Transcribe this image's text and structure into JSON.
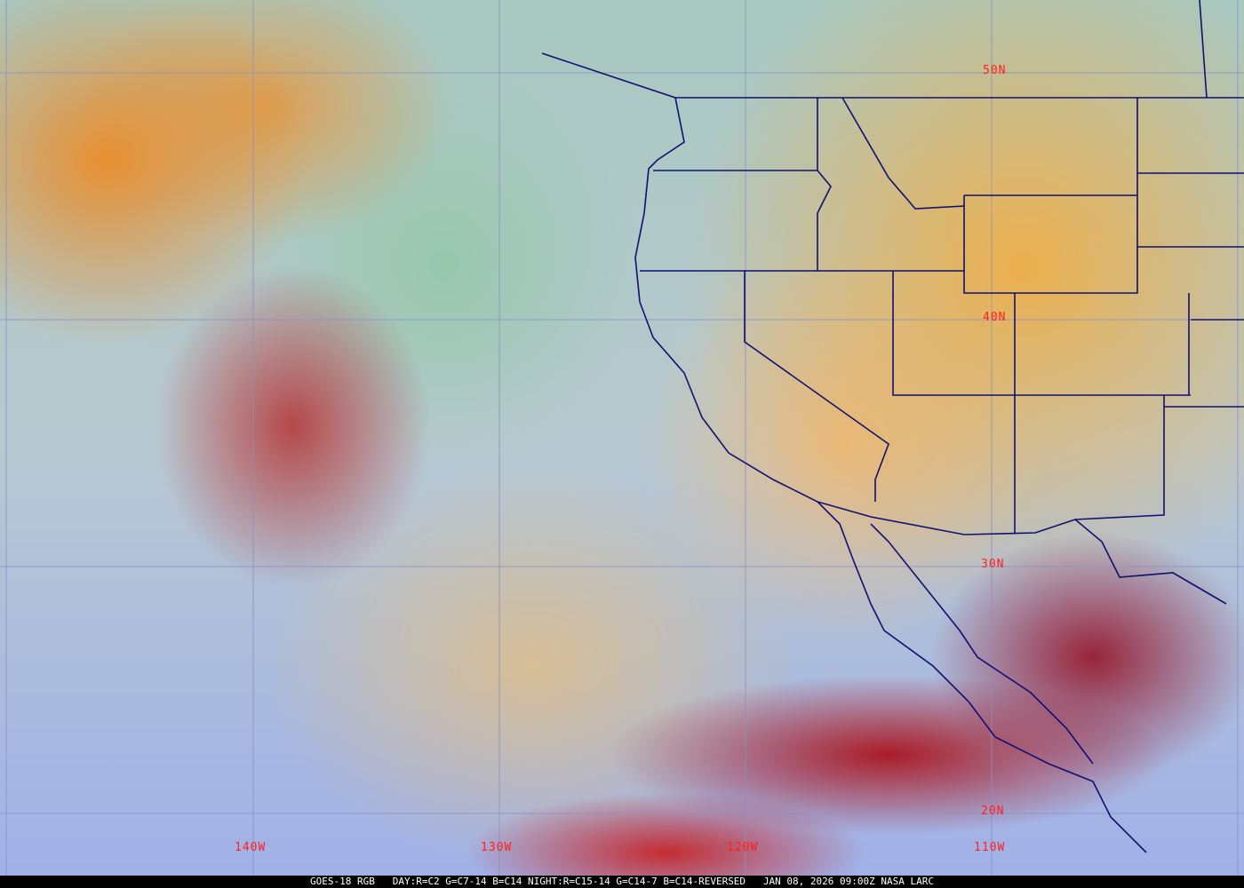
{
  "map": {
    "lat_labels": [
      "50N",
      "40N",
      "30N",
      "20N"
    ],
    "lon_labels": [
      "140W",
      "130W",
      "120W",
      "110W"
    ],
    "colors": {
      "grid": "#8890c0",
      "borders": "#101070",
      "labels": "#ff2020"
    }
  },
  "caption": {
    "satellite": "GOES-18 RGB",
    "recipe": "DAY:R=C2 G=C7-14 B=C14 NIGHT:R=C15-14 G=C14-7 B=C14-REVERSED",
    "timestamp": "JAN 08, 2026 09:00Z",
    "credit": "NASA LARC"
  }
}
